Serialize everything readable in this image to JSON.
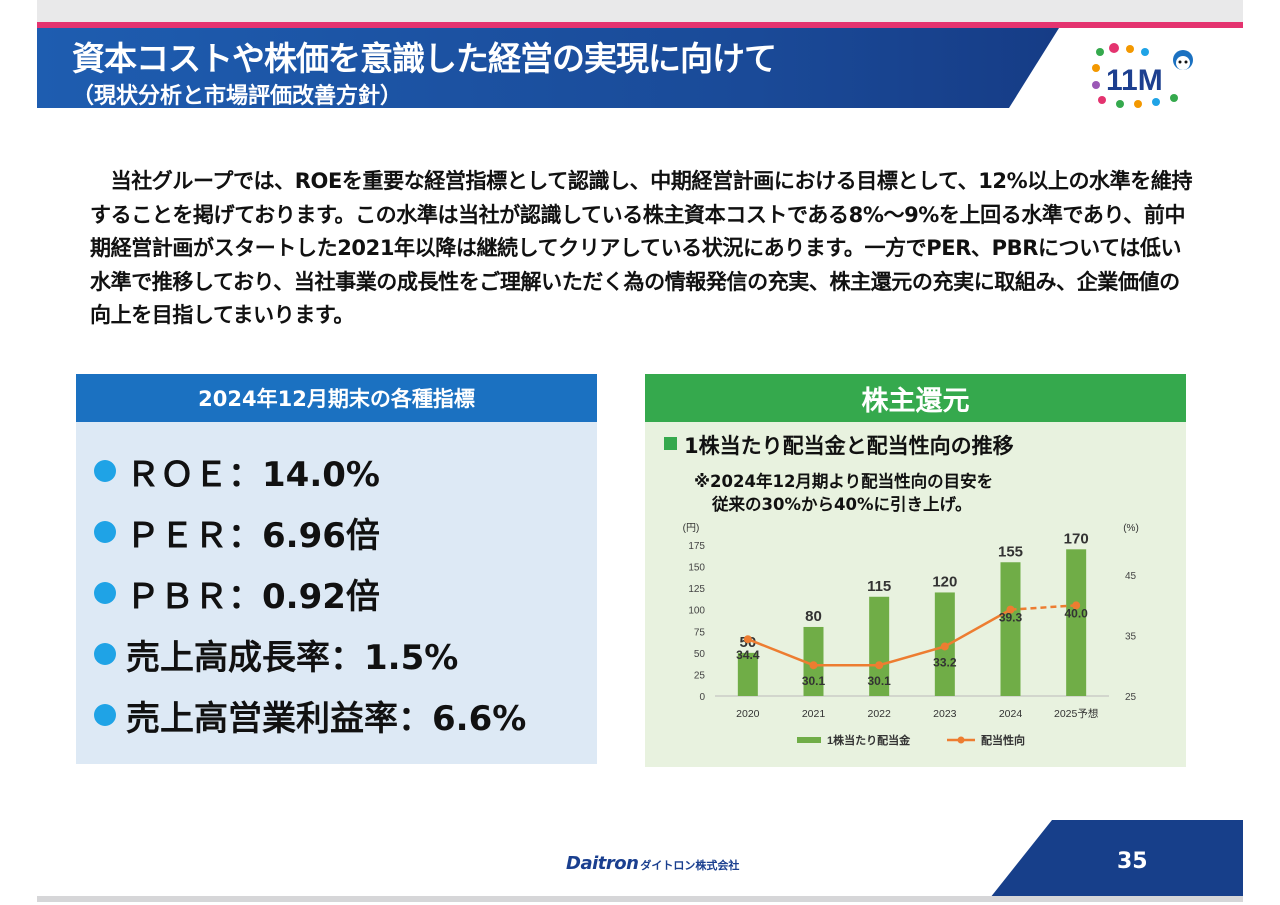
{
  "title": "資本コストや株価を意識した経営の実現に向けて",
  "subtitle": "（現状分析と市場評価改善方針）",
  "logo_text": "11M",
  "intro_paragraph": "　当社グループでは、ROEを重要な経営指標として認識し、中期経営計画における目標として、12%以上の水準を維持することを掲げております。この水準は当社が認識している株主資本コストである8%～9%を上回る水準であり、前中期経営計画がスタートした2021年以降は継続してクリアしている状況にあります。一方でPER、PBRについては低い水準で推移しており、当社事業の成長性をご理解いただく為の情報発信の充実、株主還元の充実に取組み、企業価値の向上を目指してまいります。",
  "kpi_panel": {
    "header": "2024年12月期末の各種指標",
    "items": [
      {
        "text": "ＲＯＥ：14.0%"
      },
      {
        "text": "ＰＥＲ：6.96倍"
      },
      {
        "text": "ＰＢＲ：0.92倍"
      },
      {
        "text": "売上高成長率：1.5%"
      },
      {
        "text": "売上高営業利益率：6.6%"
      }
    ]
  },
  "shareholder_panel": {
    "header": "株主還元",
    "chart_title": "1株当たり配当金と配当性向の推移",
    "note_line1": "※2024年12月期より配当性向の目安を",
    "note_line2": "従来の30%から40%に引き上げ。"
  },
  "chart_data": {
    "type": "bar",
    "categories": [
      "2020",
      "2021",
      "2022",
      "2023",
      "2024",
      "2025予想"
    ],
    "series": [
      {
        "name": "1株当たり配当金",
        "type": "bar",
        "axis": "left",
        "values": [
          50,
          80,
          115,
          120,
          155,
          170
        ],
        "color": "#70ad47"
      },
      {
        "name": "配当性向",
        "type": "line",
        "axis": "right",
        "values": [
          34.4,
          30.1,
          30.1,
          33.2,
          39.3,
          40.0
        ],
        "color": "#ed7d31",
        "dashed_last_segment": true
      }
    ],
    "left_axis": {
      "unit": "(円)",
      "ylim": [
        0,
        175
      ],
      "ticks": [
        0,
        25,
        50,
        75,
        100,
        125,
        150,
        175
      ]
    },
    "right_axis": {
      "unit": "(%)",
      "ylim": [
        25,
        50
      ],
      "ticks": [
        25,
        35,
        45
      ]
    },
    "grid": false,
    "legend_position": "bottom"
  },
  "footer": {
    "company_brand": "Daitron",
    "company_jp": "ダイトロン株式会社",
    "page_number": "35"
  },
  "colors": {
    "title_banner": "#1d4e9c",
    "accent_pink": "#e4336f",
    "kpi_header": "#1b71c1",
    "kpi_body": "#dde9f5",
    "green_header": "#35a94d",
    "green_body": "#e8f2df",
    "bar": "#70ad47",
    "line": "#ed7d31"
  }
}
